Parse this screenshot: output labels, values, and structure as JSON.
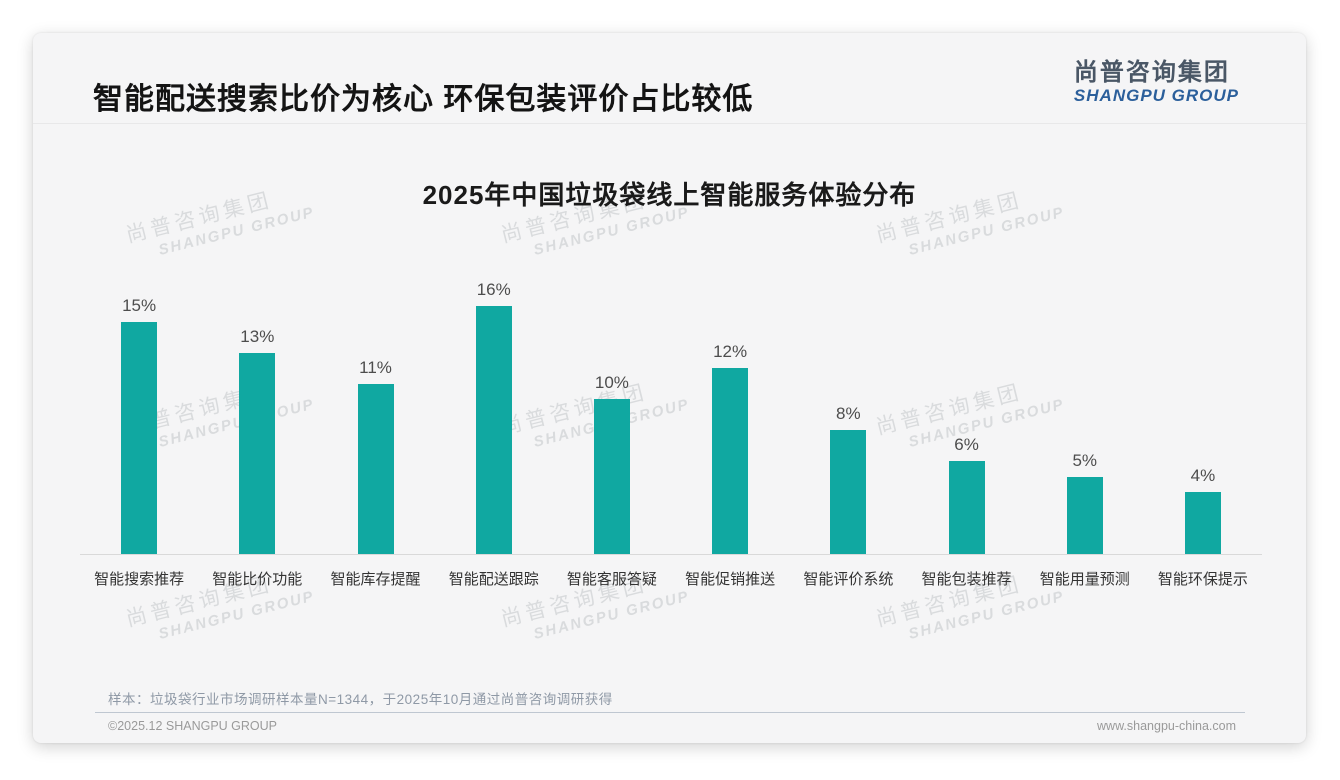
{
  "page": {
    "header_title": "智能配送搜索比价为核心 环保包装评价占比较低",
    "logo": {
      "cn": "尚普咨询集团",
      "en": "SHANGPU GROUP"
    },
    "watermark": {
      "cn": "尚普咨询集团",
      "en": "SHANGPU GROUP"
    },
    "footnote": "样本：垃圾袋行业市场调研样本量N=1344，于2025年10月通过尚普咨询调研获得",
    "footer_left": "©2025.12 SHANGPU GROUP",
    "footer_right": "www.shangpu-china.com"
  },
  "colors": {
    "bar": "#10a8a1",
    "logo_cn": "#4a5766",
    "logo_en": "#2b5f9b",
    "card_bg": "#f5f5f6",
    "axis_line": "#d9d9d9",
    "value_label": "#4d4d4d",
    "category_label": "#333333",
    "footnote": "#8f99a6",
    "footer": "#9a9a9a"
  },
  "chart_data": {
    "type": "bar",
    "title": "2025年中国垃圾袋线上智能服务体验分布",
    "categories": [
      "智能搜索推荐",
      "智能比价功能",
      "智能库存提醒",
      "智能配送跟踪",
      "智能客服答疑",
      "智能促销推送",
      "智能评价系统",
      "智能包装推荐",
      "智能用量预测",
      "智能环保提示"
    ],
    "values": [
      15,
      13,
      11,
      16,
      10,
      12,
      8,
      6,
      5,
      4
    ],
    "value_labels": [
      "15%",
      "13%",
      "11%",
      "16%",
      "10%",
      "12%",
      "8%",
      "6%",
      "5%",
      "4%"
    ],
    "unit": "%",
    "xlabel": "",
    "ylabel": "",
    "ylim": [
      0,
      18
    ],
    "grid": false,
    "legend": "none",
    "bar_color": "#10a8a1"
  }
}
